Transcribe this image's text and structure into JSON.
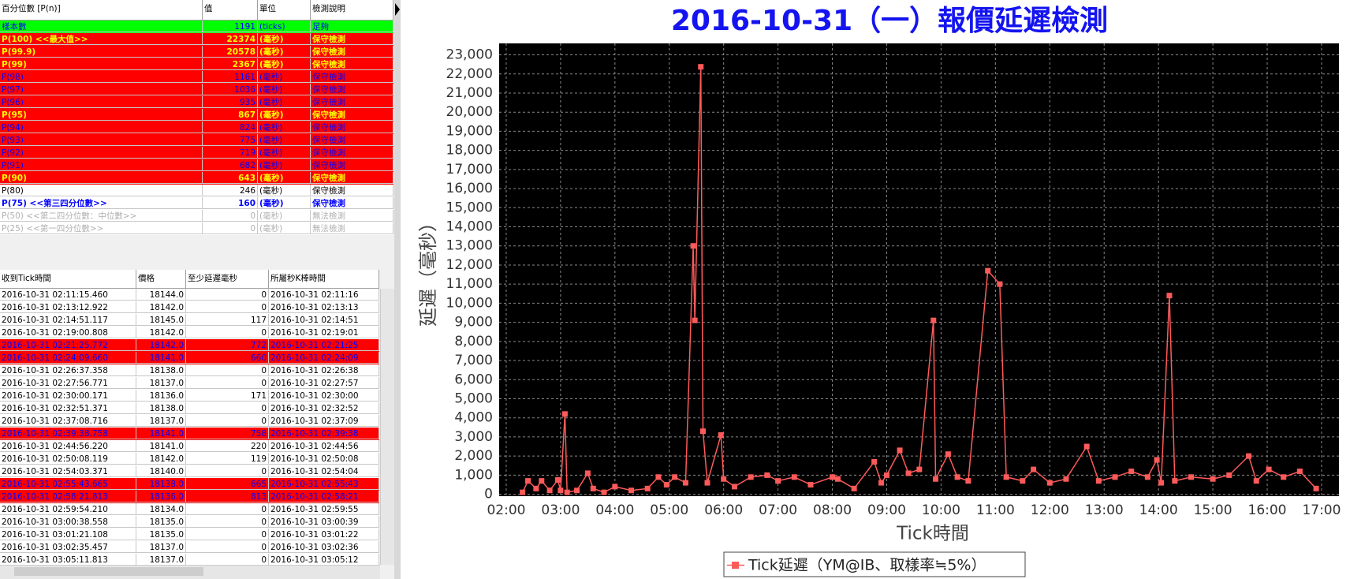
{
  "stats_table": {
    "header": [
      "百分位數 [P(n)]",
      "值",
      "單位",
      "檢測說明"
    ],
    "rows": [
      {
        "cells": [
          "樣本數",
          1191,
          "(ticks)",
          "足夠"
        ],
        "bg": "#00ff00",
        "fg": "#0000ff",
        "bold": false
      },
      {
        "cells": [
          "P(100)  <<最大值>>",
          22374,
          "(毫秒)",
          "保守檢測"
        ],
        "bg": "#ff0000",
        "fg": "#ffff00",
        "bold": true
      },
      {
        "cells": [
          "P(99.9)",
          20578,
          "(毫秒)",
          "保守檢測"
        ],
        "bg": "#ff0000",
        "fg": "#ffff00",
        "bold": true
      },
      {
        "cells": [
          "P(99)",
          2367,
          "(毫秒)",
          "保守檢測"
        ],
        "bg": "#ff0000",
        "fg": "#ffff00",
        "bold": true
      },
      {
        "cells": [
          "P(98)",
          1161,
          "(毫秒)",
          "保守檢測"
        ],
        "bg": "#ff0000",
        "fg": "#0000ff",
        "bold": false
      },
      {
        "cells": [
          "P(97)",
          1036,
          "(毫秒)",
          "保守檢測"
        ],
        "bg": "#ff0000",
        "fg": "#0000ff",
        "bold": false
      },
      {
        "cells": [
          "P(96)",
          935,
          "(毫秒)",
          "保守檢測"
        ],
        "bg": "#ff0000",
        "fg": "#0000ff",
        "bold": false
      },
      {
        "cells": [
          "P(95)",
          867,
          "(毫秒)",
          "保守檢測"
        ],
        "bg": "#ff0000",
        "fg": "#ffff00",
        "bold": true
      },
      {
        "cells": [
          "P(94)",
          824,
          "(毫秒)",
          "保守檢測"
        ],
        "bg": "#ff0000",
        "fg": "#0000ff",
        "bold": false
      },
      {
        "cells": [
          "P(93)",
          775,
          "(毫秒)",
          "保守檢測"
        ],
        "bg": "#ff0000",
        "fg": "#0000ff",
        "bold": false
      },
      {
        "cells": [
          "P(92)",
          719,
          "(毫秒)",
          "保守檢測"
        ],
        "bg": "#ff0000",
        "fg": "#0000ff",
        "bold": false
      },
      {
        "cells": [
          "P(91)",
          682,
          "(毫秒)",
          "保守檢測"
        ],
        "bg": "#ff0000",
        "fg": "#0000ff",
        "bold": false
      },
      {
        "cells": [
          "P(90)",
          643,
          "(毫秒)",
          "保守檢測"
        ],
        "bg": "#ff0000",
        "fg": "#ffff00",
        "bold": true
      },
      {
        "cells": [
          "P(80)",
          246,
          "(毫秒)",
          "保守檢測"
        ],
        "bg": "#ffffff",
        "fg": "#000000",
        "bold": false
      },
      {
        "cells": [
          "P(75)  <<第三四分位數>>",
          160,
          "(毫秒)",
          "保守檢測"
        ],
        "bg": "#ffffff",
        "fg": "#0000ff",
        "bold": true
      },
      {
        "cells": [
          "P(50)  <<第二四分位數：中位數>>",
          0,
          "(毫秒)",
          "無法檢測"
        ],
        "bg": "#ffffff",
        "fg": "#b0b0b0",
        "bold": false
      },
      {
        "cells": [
          "P(25)  <<第一四分位數>>",
          0,
          "(毫秒)",
          "無法檢測"
        ],
        "bg": "#ffffff",
        "fg": "#b0b0b0",
        "bold": false
      }
    ]
  },
  "tick_table": {
    "header": [
      "收到Tick時間",
      "價格",
      "至少延遲毫秒",
      "所屬秒K棒時間"
    ],
    "rows": [
      {
        "cells": [
          "2016-10-31 02:11:15.460",
          "18144.0",
          0,
          "2016-10-31 02:11:16"
        ]
      },
      {
        "cells": [
          "2016-10-31 02:13:12.922",
          "18142.0",
          0,
          "2016-10-31 02:13:13"
        ]
      },
      {
        "cells": [
          "2016-10-31 02:14:51.117",
          "18145.0",
          117,
          "2016-10-31 02:14:51"
        ]
      },
      {
        "cells": [
          "2016-10-31 02:19:00.808",
          "18142.0",
          0,
          "2016-10-31 02:19:01"
        ]
      },
      {
        "cells": [
          "2016-10-31 02:21:25.772",
          "18142.0",
          772,
          "2016-10-31 02:21:25"
        ],
        "bg": "#ff0000",
        "fg": "#0000ff"
      },
      {
        "cells": [
          "2016-10-31 02:24:09.660",
          "18141.0",
          660,
          "2016-10-31 02:24:09"
        ],
        "bg": "#ff0000",
        "fg": "#0000ff"
      },
      {
        "cells": [
          "2016-10-31 02:26:37.358",
          "18138.0",
          0,
          "2016-10-31 02:26:38"
        ]
      },
      {
        "cells": [
          "2016-10-31 02:27:56.771",
          "18137.0",
          0,
          "2016-10-31 02:27:57"
        ]
      },
      {
        "cells": [
          "2016-10-31 02:30:00.171",
          "18136.0",
          171,
          "2016-10-31 02:30:00"
        ]
      },
      {
        "cells": [
          "2016-10-31 02:32:51.371",
          "18138.0",
          0,
          "2016-10-31 02:32:52"
        ]
      },
      {
        "cells": [
          "2016-10-31 02:37:08.716",
          "18137.0",
          0,
          "2016-10-31 02:37:09"
        ]
      },
      {
        "cells": [
          "2016-10-31 02:39:38.758",
          "18141.0",
          758,
          "2016-10-31 02:39:38"
        ],
        "bg": "#ff0000",
        "fg": "#0000ff"
      },
      {
        "cells": [
          "2016-10-31 02:44:56.220",
          "18141.0",
          220,
          "2016-10-31 02:44:56"
        ]
      },
      {
        "cells": [
          "2016-10-31 02:50:08.119",
          "18142.0",
          119,
          "2016-10-31 02:50:08"
        ]
      },
      {
        "cells": [
          "2016-10-31 02:54:03.371",
          "18140.0",
          0,
          "2016-10-31 02:54:04"
        ]
      },
      {
        "cells": [
          "2016-10-31 02:55:43.665",
          "18138.0",
          665,
          "2016-10-31 02:55:43"
        ],
        "bg": "#ff0000",
        "fg": "#0000ff"
      },
      {
        "cells": [
          "2016-10-31 02:58:21.813",
          "18136.0",
          813,
          "2016-10-31 02:58:21"
        ],
        "bg": "#ff0000",
        "fg": "#0000ff"
      },
      {
        "cells": [
          "2016-10-31 02:59:54.210",
          "18134.0",
          0,
          "2016-10-31 02:59:55"
        ]
      },
      {
        "cells": [
          "2016-10-31 03:00:38.558",
          "18135.0",
          0,
          "2016-10-31 03:00:39"
        ]
      },
      {
        "cells": [
          "2016-10-31 03:01:21.108",
          "18135.0",
          0,
          "2016-10-31 03:01:22"
        ]
      },
      {
        "cells": [
          "2016-10-31 03:02:35.457",
          "18137.0",
          0,
          "2016-10-31 03:02:36"
        ]
      },
      {
        "cells": [
          "2016-10-31 03:05:11.813",
          "18137.0",
          0,
          "2016-10-31 03:05:12"
        ]
      }
    ]
  },
  "chart_data": {
    "type": "line",
    "title": "2016-10-31（一）報價延遲檢測",
    "x_label": "Tick時間",
    "y_label": "延遲（毫秒）",
    "xlim": [
      1.87,
      17.32
    ],
    "ylim": [
      -100,
      23600
    ],
    "grid": true,
    "xticks": [
      {
        "value": 2,
        "label": "02:00"
      },
      {
        "value": 3,
        "label": "03:00"
      },
      {
        "value": 4,
        "label": "04:00"
      },
      {
        "value": 5,
        "label": "05:00"
      },
      {
        "value": 6,
        "label": "06:00"
      },
      {
        "value": 7,
        "label": "07:00"
      },
      {
        "value": 8,
        "label": "08:00"
      },
      {
        "value": 9,
        "label": "09:00"
      },
      {
        "value": 10,
        "label": "10:00"
      },
      {
        "value": 11,
        "label": "11:00"
      },
      {
        "value": 12,
        "label": "12:00"
      },
      {
        "value": 13,
        "label": "13:00"
      },
      {
        "value": 14,
        "label": "14:00"
      },
      {
        "value": 15,
        "label": "15:00"
      },
      {
        "value": 16,
        "label": "16:00"
      },
      {
        "value": 17,
        "label": "17:00"
      }
    ],
    "yticks": [
      0,
      {
        "value": 1000,
        "label": "1,000"
      },
      {
        "value": 2000,
        "label": "2,000"
      },
      {
        "value": 3000,
        "label": "3,000"
      },
      {
        "value": 4000,
        "label": "4,000"
      },
      {
        "value": 5000,
        "label": "5,000"
      },
      {
        "value": 6000,
        "label": "6,000"
      },
      {
        "value": 7000,
        "label": "7,000"
      },
      {
        "value": 8000,
        "label": "8,000"
      },
      {
        "value": 9000,
        "label": "9,000"
      },
      {
        "value": 10000,
        "label": "10,000"
      },
      {
        "value": 11000,
        "label": "11,000"
      },
      {
        "value": 12000,
        "label": "12,000"
      },
      {
        "value": 13000,
        "label": "13,000"
      },
      {
        "value": 14000,
        "label": "14,000"
      },
      {
        "value": 15000,
        "label": "15,000"
      },
      {
        "value": 16000,
        "label": "16,000"
      },
      {
        "value": 17000,
        "label": "17,000"
      },
      {
        "value": 18000,
        "label": "18,000"
      },
      {
        "value": 19000,
        "label": "19,000"
      },
      {
        "value": 20000,
        "label": "20,000"
      },
      {
        "value": 21000,
        "label": "21,000"
      },
      {
        "value": 22000,
        "label": "22,000"
      },
      {
        "value": 23000,
        "label": "23,000"
      }
    ],
    "x": [
      2.3,
      2.4,
      2.55,
      2.65,
      2.8,
      2.95,
      3.0,
      3.08,
      3.12,
      3.3,
      3.5,
      3.6,
      3.8,
      4.0,
      4.3,
      4.6,
      4.8,
      4.95,
      5.1,
      5.3,
      5.44,
      5.47,
      5.58,
      5.62,
      5.7,
      5.95,
      6.0,
      6.2,
      6.5,
      6.8,
      7.0,
      7.3,
      7.6,
      8.0,
      8.1,
      8.4,
      8.77,
      8.9,
      9.0,
      9.24,
      9.4,
      9.6,
      9.86,
      9.9,
      10.13,
      10.3,
      10.5,
      10.86,
      11.08,
      11.2,
      11.5,
      11.7,
      12.0,
      12.3,
      12.68,
      12.9,
      13.2,
      13.5,
      13.8,
      13.97,
      14.05,
      14.2,
      14.3,
      14.6,
      15.0,
      15.3,
      15.66,
      15.8,
      16.03,
      16.3,
      16.6,
      16.9
    ],
    "series": [
      {
        "name": "Tick延遲（YM@IB、取樣率≒5%）",
        "color": "#ff5a5a",
        "values": [
          100,
          700,
          300,
          700,
          200,
          750,
          200,
          4200,
          100,
          200,
          1100,
          300,
          100,
          400,
          200,
          300,
          900,
          500,
          900,
          600,
          13000,
          9100,
          22374,
          3300,
          600,
          3100,
          800,
          400,
          900,
          1000,
          700,
          900,
          500,
          900,
          800,
          300,
          1700,
          600,
          1000,
          2300,
          1100,
          1300,
          9100,
          800,
          2100,
          900,
          700,
          11700,
          11000,
          900,
          700,
          1300,
          600,
          800,
          2500,
          700,
          900,
          1200,
          900,
          1800,
          600,
          10400,
          700,
          900,
          800,
          1000,
          2000,
          700,
          1300,
          900,
          1200,
          300
        ]
      }
    ]
  }
}
